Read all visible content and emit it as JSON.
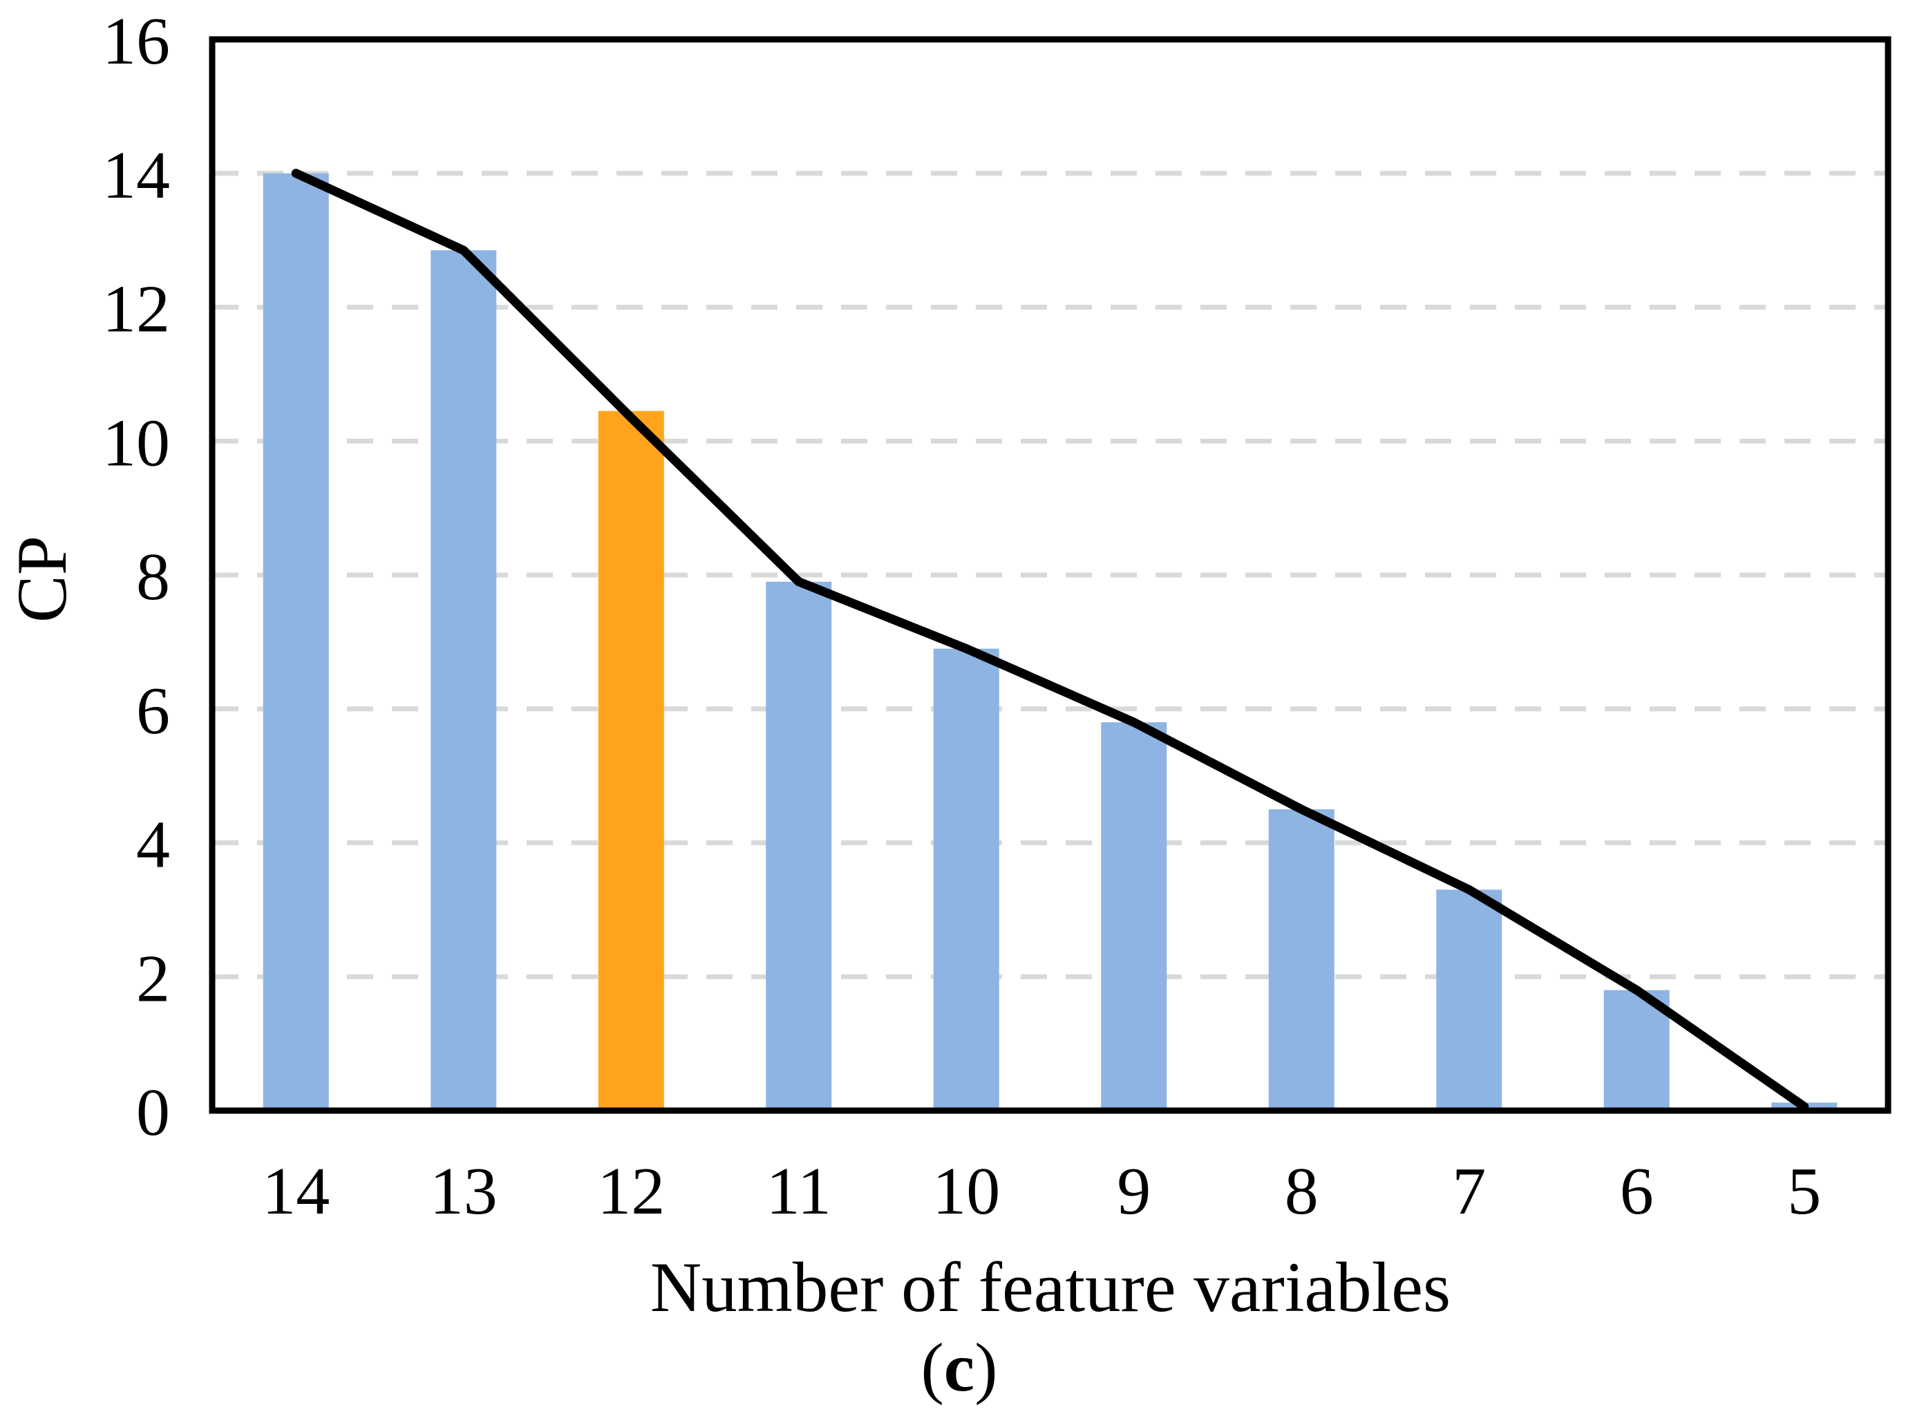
{
  "figure": {
    "background": "#ffffff"
  },
  "chart_data": {
    "type": "bar",
    "overlay": "line",
    "title": "",
    "xlabel": "Number of feature variables",
    "ylabel": "CP",
    "categories": [
      "14",
      "13",
      "12",
      "11",
      "10",
      "9",
      "8",
      "7",
      "6",
      "5"
    ],
    "series": [
      {
        "name": "CP bars",
        "type": "bar",
        "values": [
          14.0,
          12.85,
          10.45,
          7.9,
          6.9,
          5.8,
          4.5,
          3.3,
          1.8,
          0.12
        ]
      },
      {
        "name": "CP line",
        "type": "line",
        "values": [
          14.0,
          12.85,
          10.35,
          7.9,
          6.9,
          5.8,
          4.5,
          3.3,
          1.8,
          0.06
        ]
      }
    ],
    "highlight_index": 2,
    "ylim": [
      0,
      16
    ],
    "yticks": [
      0,
      2,
      4,
      6,
      8,
      10,
      12,
      14,
      16
    ],
    "grid": "horizontal-dashed",
    "legend": "none",
    "colors": {
      "bar": "#8EB4E3",
      "highlight": "#FFA41C",
      "line": "#000000",
      "grid": "#D9D9D9",
      "frame": "#000000"
    }
  },
  "caption": {
    "full": "(c)",
    "open": "(",
    "letter": "c",
    "close": ")"
  }
}
